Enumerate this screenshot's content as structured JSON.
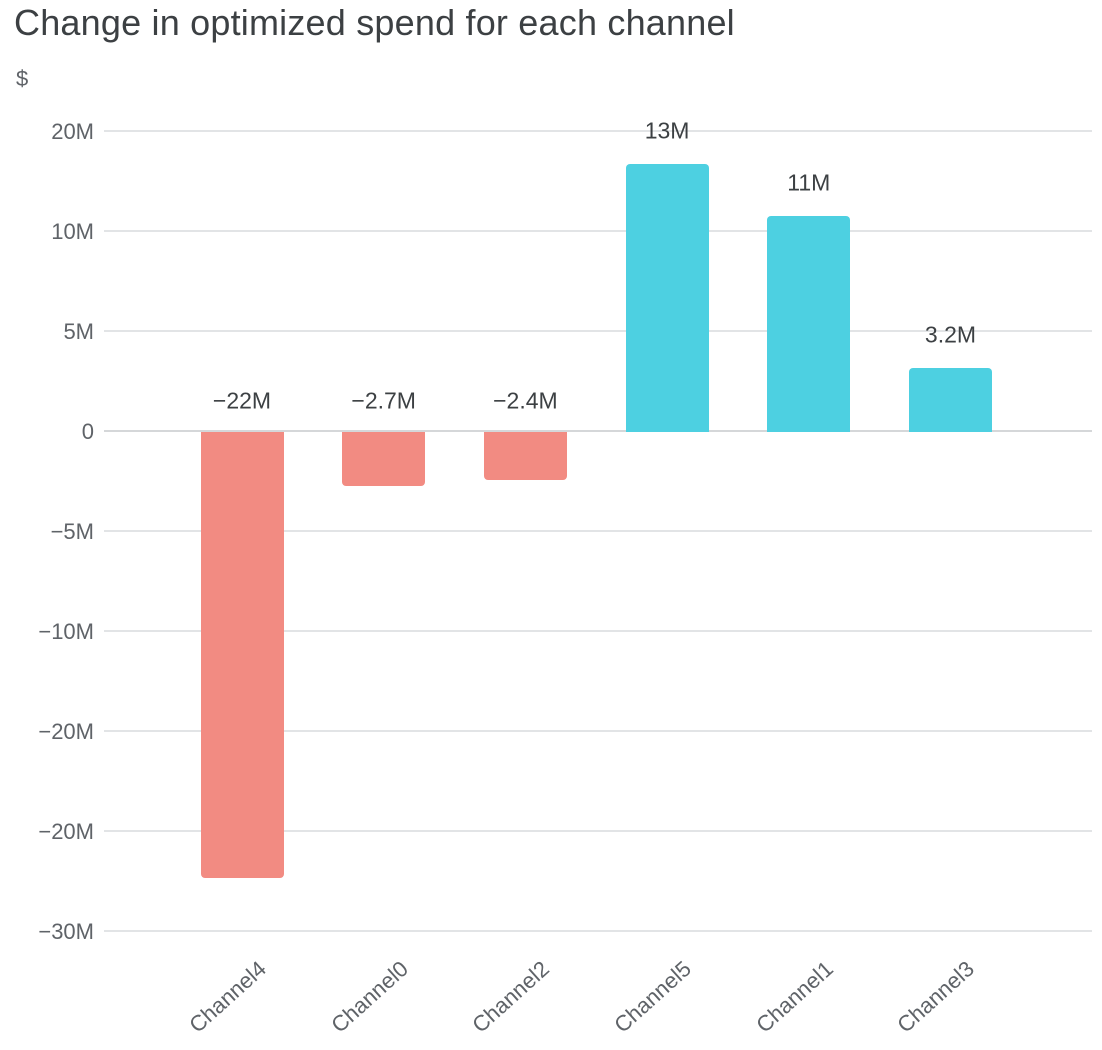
{
  "title": "Change in optimized spend for each channel",
  "colors": {
    "positive_bar": "#4DD0E1",
    "negative_bar": "#F28B82",
    "gridline": "#e2e4e6",
    "zero_line": "#d5d7d9",
    "title_text": "#3c4043",
    "tick_text": "#5f6368",
    "value_text": "#3c4043"
  },
  "chart_data": {
    "type": "bar",
    "title": "Change in optimized spend for each channel",
    "ylabel": "$",
    "xlabel": "",
    "categories": [
      "Channel4",
      "Channel0",
      "Channel2",
      "Channel5",
      "Channel1",
      "Channel3"
    ],
    "values": [
      -22.3,
      -2.7,
      -2.4,
      13.4,
      10.8,
      3.2
    ],
    "value_labels": [
      "−22M",
      "−2.7M",
      "−2.4M",
      "13M",
      "11M",
      "3.2M"
    ],
    "value_unit": "millions of dollars",
    "bar_colors": [
      "#F28B82",
      "#F28B82",
      "#F28B82",
      "#4DD0E1",
      "#4DD0E1",
      "#4DD0E1"
    ],
    "y_ticks": [
      {
        "value": 15,
        "label": "20M"
      },
      {
        "value": 10,
        "label": "10M"
      },
      {
        "value": 5,
        "label": "5M"
      },
      {
        "value": 0,
        "label": "0"
      },
      {
        "value": -5,
        "label": "−5M"
      },
      {
        "value": -10,
        "label": "−10M"
      },
      {
        "value": -15,
        "label": "−20M"
      },
      {
        "value": -20,
        "label": "−20M"
      },
      {
        "value": -25,
        "label": "−30M"
      }
    ],
    "ylim": [
      -25,
      15
    ],
    "grid": true,
    "legend": false
  }
}
